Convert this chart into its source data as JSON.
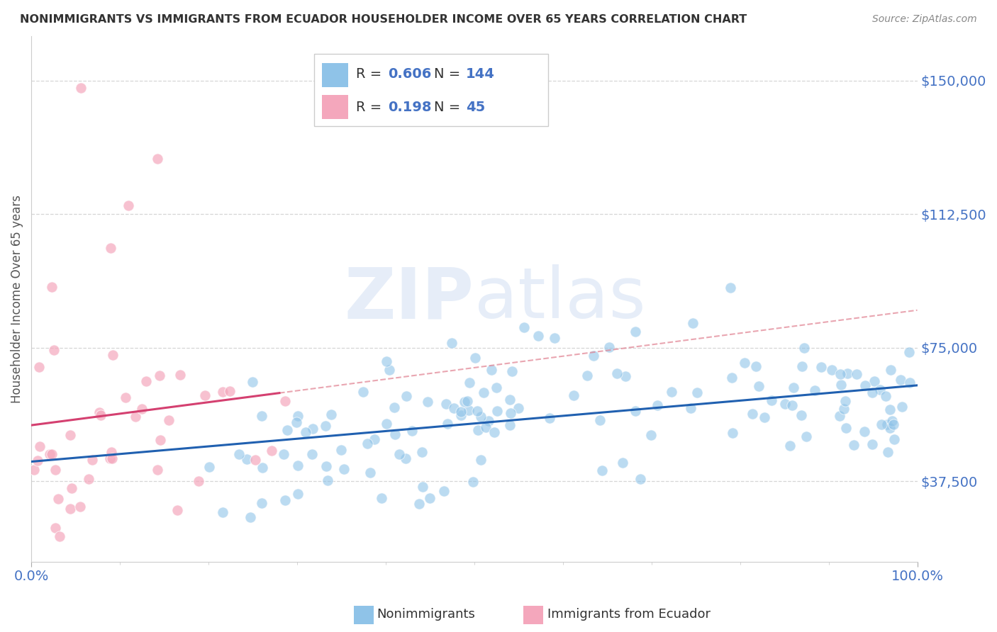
{
  "title": "NONIMMIGRANTS VS IMMIGRANTS FROM ECUADOR HOUSEHOLDER INCOME OVER 65 YEARS CORRELATION CHART",
  "source": "Source: ZipAtlas.com",
  "ylabel": "Householder Income Over 65 years",
  "xlim": [
    0,
    100
  ],
  "ylim": [
    15000,
    162500
  ],
  "yticks": [
    37500,
    75000,
    112500,
    150000
  ],
  "ytick_labels": [
    "$37,500",
    "$75,000",
    "$112,500",
    "$150,000"
  ],
  "xtick_labels": [
    "0.0%",
    "100.0%"
  ],
  "watermark": "ZIPatlas",
  "blue_color": "#8fc3e8",
  "pink_color": "#f4a7bc",
  "blue_line_color": "#2060b0",
  "pink_line_color": "#d44070",
  "pink_dash_color": "#e08090",
  "blue_N": 144,
  "pink_N": 45,
  "background_color": "#ffffff",
  "grid_color": "#cccccc",
  "title_color": "#333333",
  "axis_label_color": "#555555",
  "tick_label_color": "#4472c4",
  "watermark_color": "#c8d8f0",
  "watermark_alpha": 0.45,
  "legend_box_color": "#f8f8f8",
  "legend_border_color": "#cccccc"
}
